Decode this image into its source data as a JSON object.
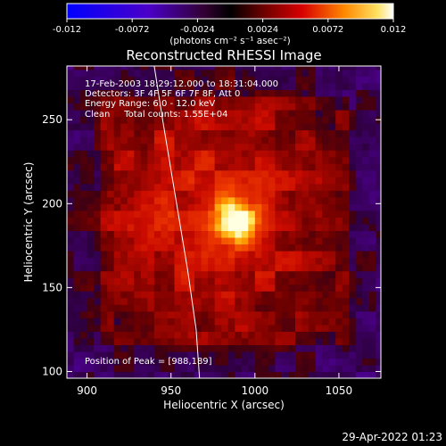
{
  "colorbar": {
    "ticks": [
      "-0.012",
      "-0.0072",
      "-0.0024",
      "0.0024",
      "0.0072",
      "0.012"
    ],
    "tick_values": [
      -0.012,
      -0.0072,
      -0.0024,
      0.0024,
      0.0072,
      0.012
    ],
    "range": [
      -0.012,
      0.012
    ],
    "units_label": "(photons cm⁻² s⁻¹ asec⁻²)"
  },
  "plot": {
    "title": "Reconstructed RHESSI Image",
    "annotations": [
      "17-Feb-2003 18:29:12.000 to 18:31:04.000",
      "Detectors: 3F 4F 5F 6F 7F 8F, Att 0",
      "Energy Range: 6.0 - 12.0 keV",
      "Clean     Total counts: 1.55E+04"
    ],
    "peak_label": "Position of Peak = [988,189]",
    "footer_date": "29-Apr-2022 01:23"
  },
  "chart_data": {
    "type": "heatmap",
    "title": "Reconstructed RHESSI Image",
    "xlabel": "Heliocentric X (arcsec)",
    "ylabel": "Heliocentric Y (arcsec)",
    "xlim": [
      888,
      1075
    ],
    "ylim": [
      96,
      282
    ],
    "x_ticks": [
      900,
      950,
      1000,
      1050
    ],
    "y_ticks": [
      100,
      150,
      200,
      250
    ],
    "peak": {
      "x": 988,
      "y": 189
    },
    "colormap": "hot",
    "limb_curve": {
      "x": [
        940,
        945,
        950,
        955,
        960,
        965,
        967
      ],
      "y": [
        282,
        250,
        220,
        190,
        160,
        125,
        96
      ]
    },
    "grid": false
  }
}
